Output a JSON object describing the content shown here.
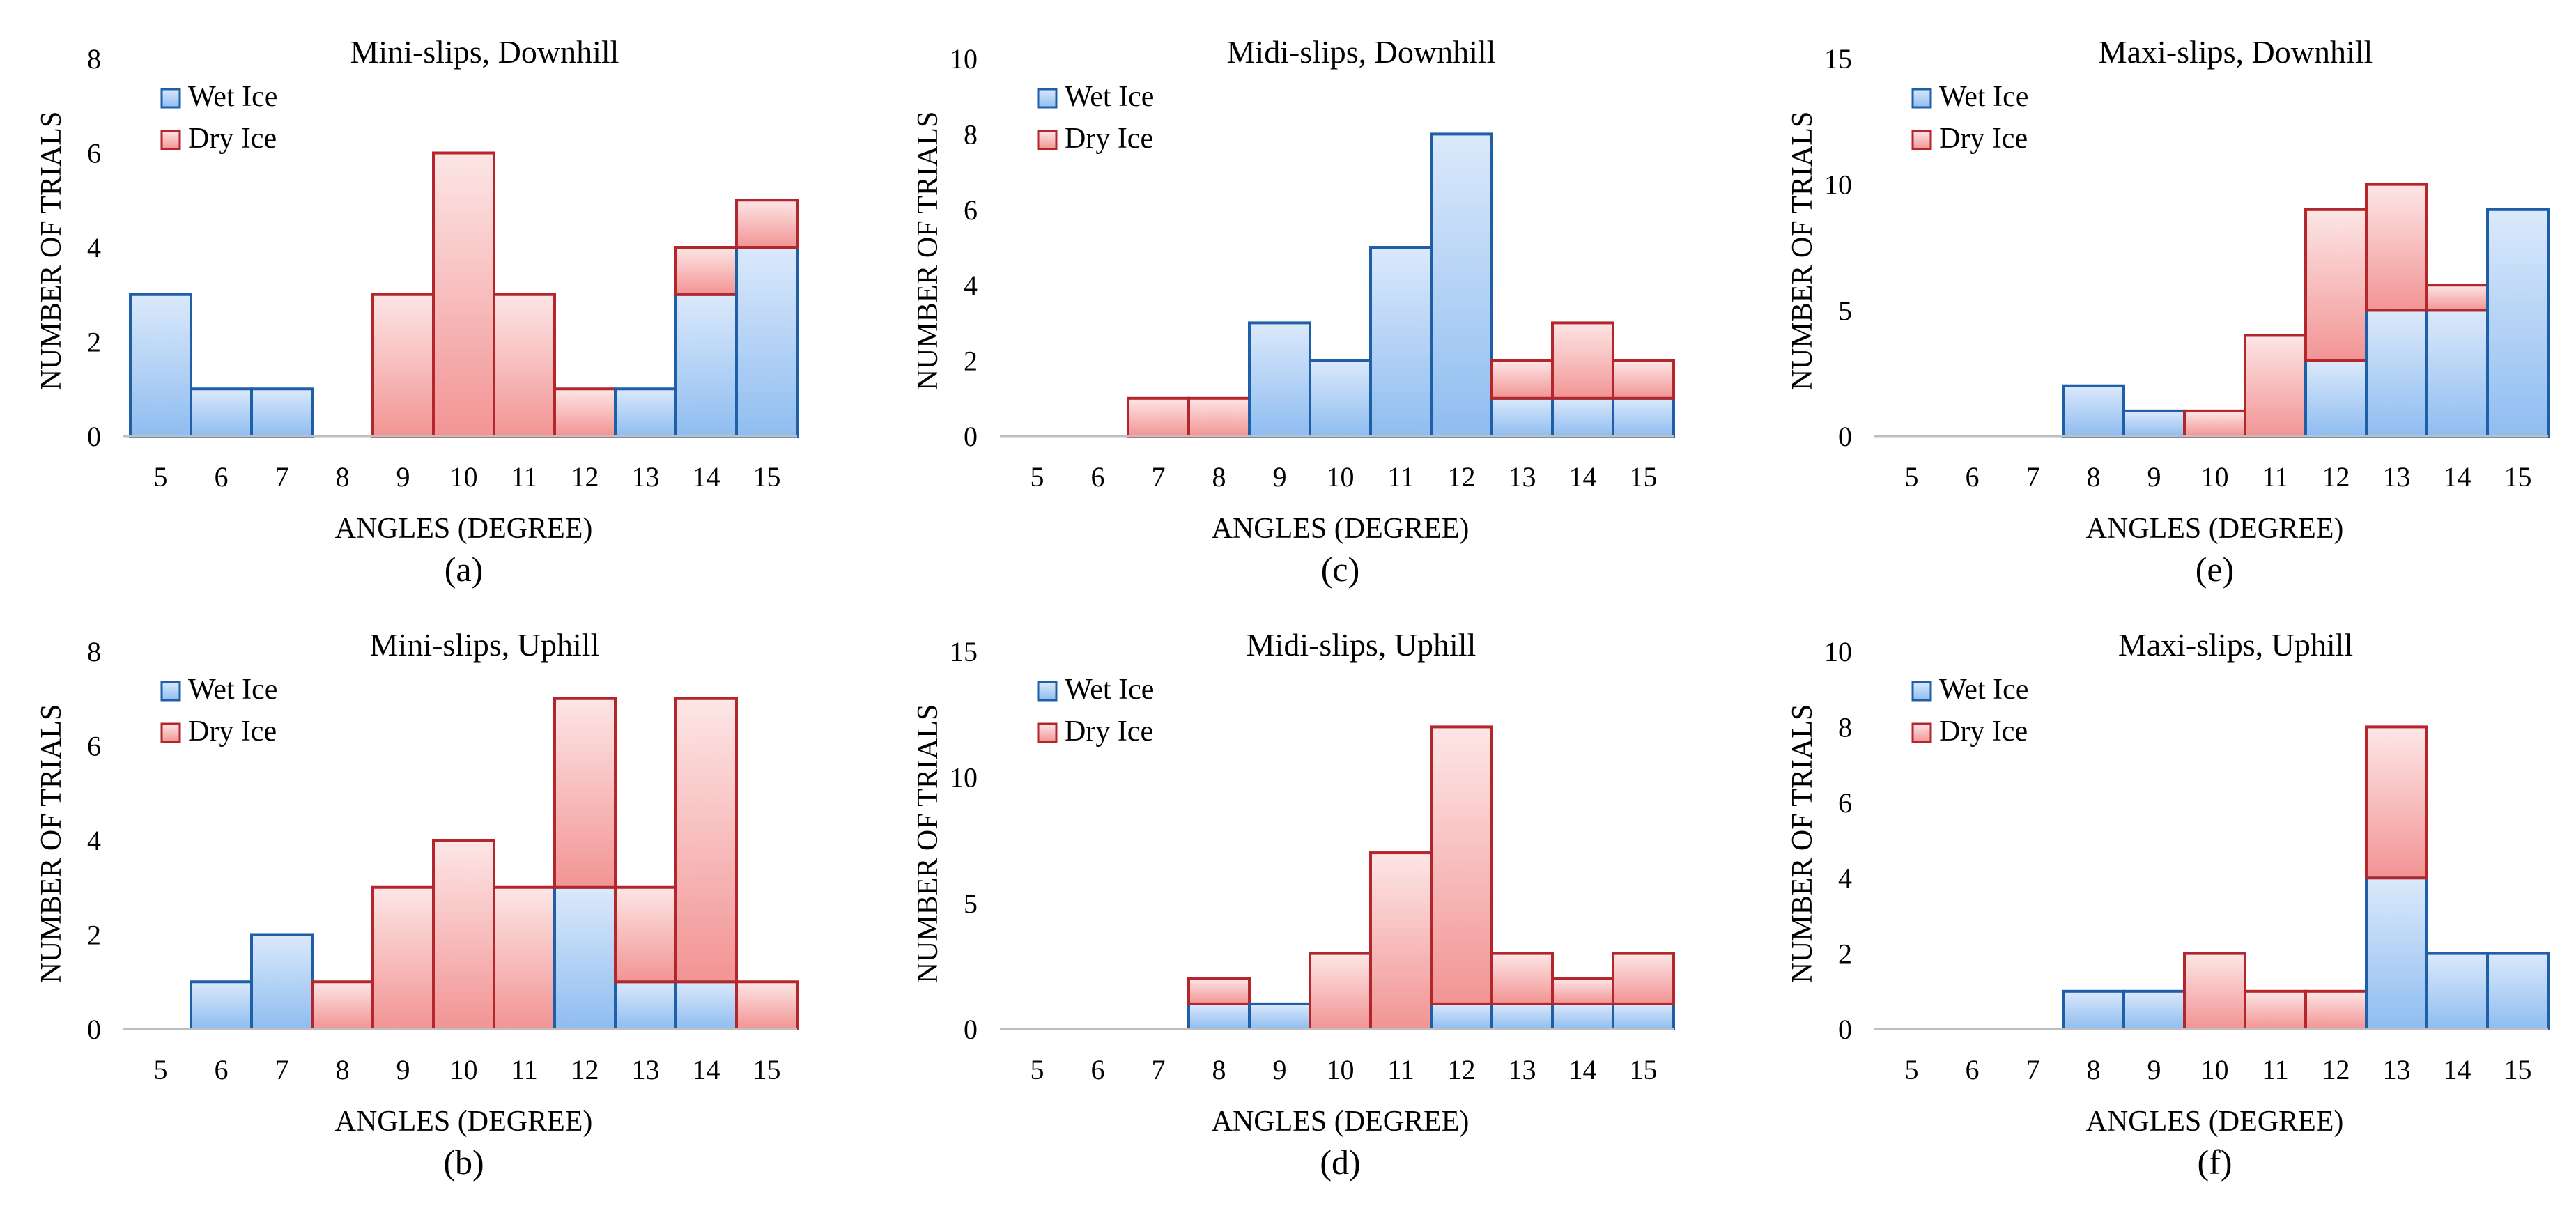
{
  "colors": {
    "wet_fill_top": "#dbe9fb",
    "wet_fill_bottom": "#8fbdf0",
    "wet_stroke": "#1f5fa8",
    "dry_fill_top": "#fde6e6",
    "dry_fill_bottom": "#f29494",
    "dry_stroke": "#b3262c",
    "axis": "#bfbfbf"
  },
  "chart_data": [
    {
      "id": "a",
      "type": "bar",
      "stacked": true,
      "title": "Mini-slips, Downhill",
      "caption": "(a)",
      "xlabel": "ANGLES (DEGREE)",
      "ylabel": "NUMBER OF TRIALS",
      "categories": [
        "5",
        "6",
        "7",
        "8",
        "9",
        "10",
        "11",
        "12",
        "13",
        "14",
        "15"
      ],
      "ylim": [
        0,
        8
      ],
      "yticks": [
        0,
        2,
        4,
        6,
        8
      ],
      "series": [
        {
          "name": "Wet Ice",
          "values": [
            3,
            1,
            1,
            0,
            0,
            0,
            0,
            0,
            1,
            3,
            4
          ]
        },
        {
          "name": "Dry Ice",
          "values": [
            0,
            0,
            0,
            0,
            3,
            6,
            3,
            1,
            0,
            1,
            1
          ]
        }
      ]
    },
    {
      "id": "c",
      "type": "bar",
      "stacked": true,
      "title": "Midi-slips, Downhill",
      "caption": "(c)",
      "xlabel": "ANGLES (DEGREE)",
      "ylabel": "NUMBER OF TRIALS",
      "categories": [
        "5",
        "6",
        "7",
        "8",
        "9",
        "10",
        "11",
        "12",
        "13",
        "14",
        "15"
      ],
      "ylim": [
        0,
        10
      ],
      "yticks": [
        0,
        2,
        4,
        6,
        8,
        10
      ],
      "series": [
        {
          "name": "Wet Ice",
          "values": [
            0,
            0,
            0,
            0,
            3,
            2,
            5,
            8,
            1,
            1,
            1
          ]
        },
        {
          "name": "Dry Ice",
          "values": [
            0,
            0,
            1,
            1,
            0,
            0,
            0,
            0,
            1,
            2,
            1
          ]
        }
      ]
    },
    {
      "id": "e",
      "type": "bar",
      "stacked": true,
      "title": "Maxi-slips, Downhill",
      "caption": "(e)",
      "xlabel": "ANGLES (DEGREE)",
      "ylabel": "NUMBER OF TRIALS",
      "categories": [
        "5",
        "6",
        "7",
        "8",
        "9",
        "10",
        "11",
        "12",
        "13",
        "14",
        "15"
      ],
      "ylim": [
        0,
        15
      ],
      "yticks": [
        0,
        5,
        10,
        15
      ],
      "series": [
        {
          "name": "Wet Ice",
          "values": [
            0,
            0,
            0,
            2,
            1,
            0,
            0,
            3,
            5,
            5,
            9
          ]
        },
        {
          "name": "Dry Ice",
          "values": [
            0,
            0,
            0,
            0,
            0,
            1,
            4,
            6,
            5,
            1,
            0
          ]
        }
      ]
    },
    {
      "id": "b",
      "type": "bar",
      "stacked": true,
      "title": "Mini-slips, Uphill",
      "caption": "(b)",
      "xlabel": "ANGLES (DEGREE)",
      "ylabel": "NUMBER OF TRIALS",
      "categories": [
        "5",
        "6",
        "7",
        "8",
        "9",
        "10",
        "11",
        "12",
        "13",
        "14",
        "15"
      ],
      "ylim": [
        0,
        8
      ],
      "yticks": [
        0,
        2,
        4,
        6,
        8
      ],
      "series": [
        {
          "name": "Wet Ice",
          "values": [
            0,
            1,
            2,
            0,
            0,
            0,
            0,
            3,
            1,
            1,
            0
          ]
        },
        {
          "name": "Dry Ice",
          "values": [
            0,
            0,
            0,
            1,
            3,
            4,
            3,
            4,
            2,
            6,
            1
          ]
        }
      ]
    },
    {
      "id": "d",
      "type": "bar",
      "stacked": true,
      "title": "Midi-slips, Uphill",
      "caption": "(d)",
      "xlabel": "ANGLES (DEGREE)",
      "ylabel": "NUMBER OF TRIALS",
      "categories": [
        "5",
        "6",
        "7",
        "8",
        "9",
        "10",
        "11",
        "12",
        "13",
        "14",
        "15"
      ],
      "ylim": [
        0,
        15
      ],
      "yticks": [
        0,
        5,
        10,
        15
      ],
      "series": [
        {
          "name": "Wet Ice",
          "values": [
            0,
            0,
            0,
            1,
            1,
            0,
            0,
            1,
            1,
            1,
            1
          ]
        },
        {
          "name": "Dry Ice",
          "values": [
            0,
            0,
            0,
            1,
            0,
            3,
            7,
            11,
            2,
            1,
            2
          ]
        }
      ]
    },
    {
      "id": "f",
      "type": "bar",
      "stacked": true,
      "title": "Maxi-slips, Uphill",
      "caption": "(f)",
      "xlabel": "ANGLES (DEGREE)",
      "ylabel": "NUMBER OF TRIALS",
      "categories": [
        "5",
        "6",
        "7",
        "8",
        "9",
        "10",
        "11",
        "12",
        "13",
        "14",
        "15"
      ],
      "ylim": [
        0,
        10
      ],
      "yticks": [
        0,
        2,
        4,
        6,
        8,
        10
      ],
      "series": [
        {
          "name": "Wet Ice",
          "values": [
            0,
            0,
            0,
            1,
            1,
            0,
            0,
            0,
            4,
            2,
            2
          ]
        },
        {
          "name": "Dry Ice",
          "values": [
            0,
            0,
            0,
            0,
            0,
            2,
            1,
            1,
            4,
            0,
            0
          ]
        }
      ]
    }
  ]
}
